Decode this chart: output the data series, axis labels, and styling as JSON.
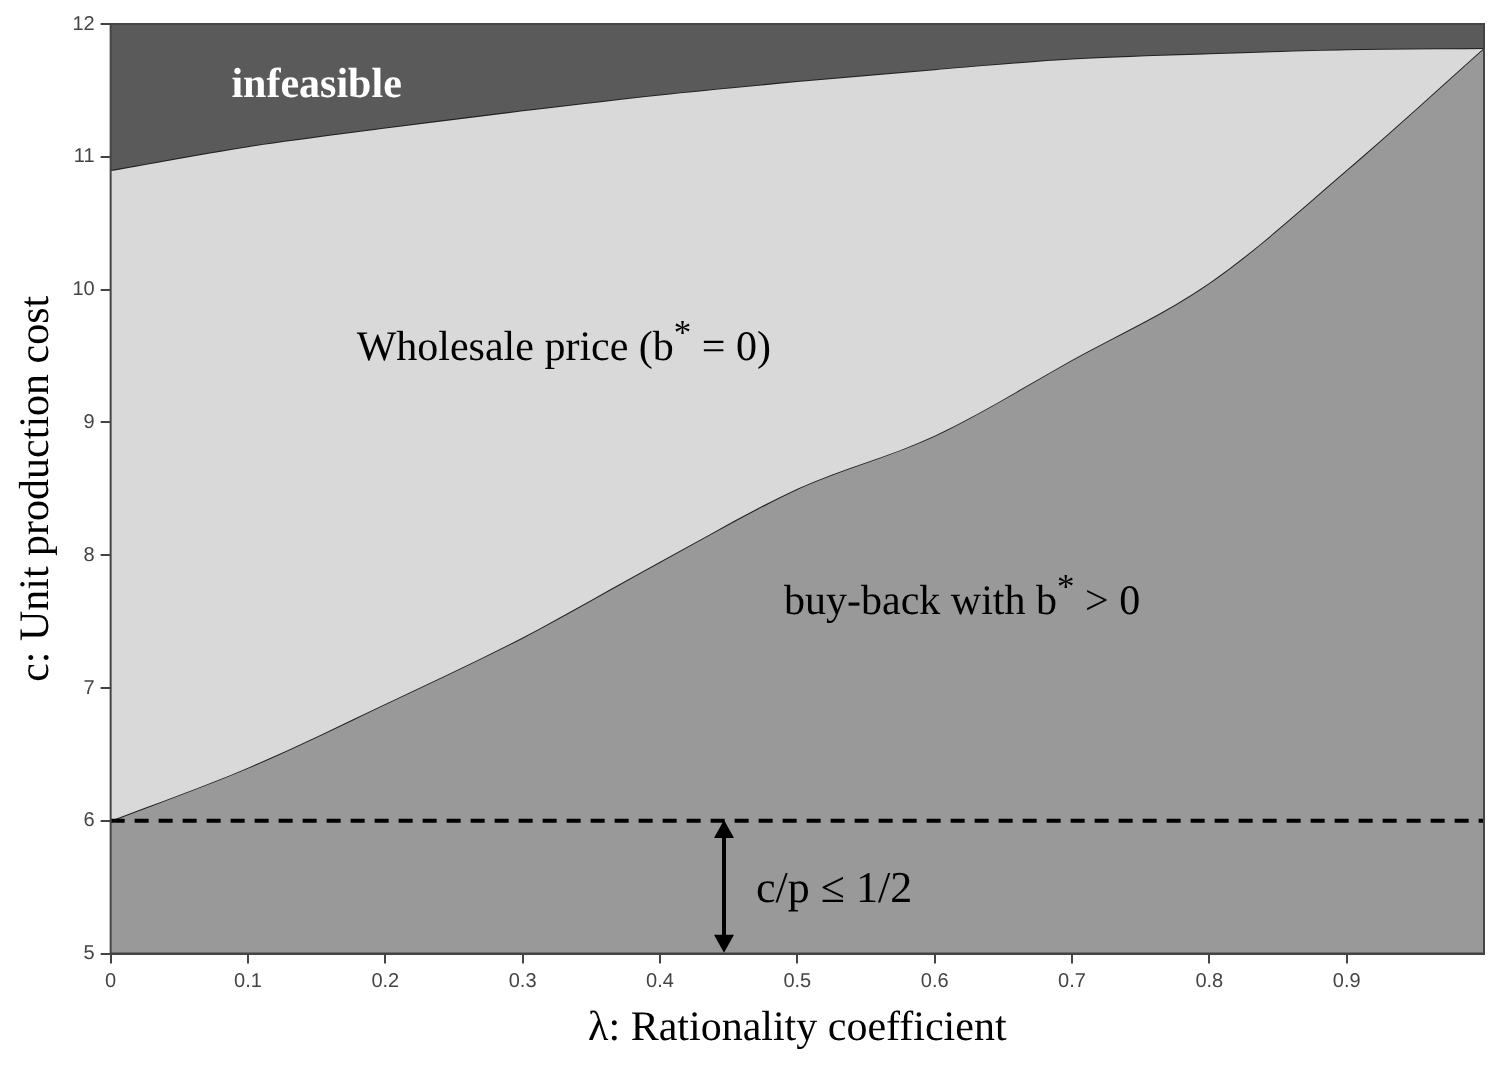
{
  "chart_data": {
    "type": "area",
    "xlabel": "λ: Rationality coefficient",
    "ylabel": "c: Unit production cost",
    "x": [
      0,
      0.1,
      0.2,
      0.3,
      0.4,
      0.5,
      0.6,
      0.7,
      0.8,
      0.9,
      1.0
    ],
    "series": [
      {
        "name": "buy-back with b$^{*}$ > 0",
        "color": "#999999",
        "values": [
          6.0,
          6.4,
          6.88,
          7.38,
          7.95,
          8.5,
          8.9,
          9.47,
          10.05,
          10.9,
          11.82
        ]
      },
      {
        "name": "Wholesale price (b$^{*}$ = 0)",
        "color": "#d9d9d9",
        "values": [
          10.9,
          11.08,
          11.22,
          11.35,
          11.47,
          11.57,
          11.66,
          11.74,
          11.78,
          11.81,
          11.82
        ]
      },
      {
        "name": "infeasible",
        "color": "#5a5a5a",
        "values": [
          12,
          12,
          12,
          12,
          12,
          12,
          12,
          12,
          12,
          12,
          12
        ]
      }
    ],
    "xlim": [
      0,
      1
    ],
    "xticks": [
      0,
      0.1,
      0.2,
      0.3,
      0.4,
      0.5,
      0.6,
      0.7,
      0.8,
      0.9
    ],
    "ylim": [
      5,
      12
    ],
    "yticks": [
      5,
      6,
      7,
      8,
      9,
      10,
      11,
      12
    ],
    "ref_lines": [
      {
        "axis": "y",
        "value": 6,
        "color": "#000000",
        "line_style": "dashed"
      }
    ],
    "annotations": [
      "c/p ≤ 1/2"
    ],
    "legend": false,
    "marker": "none"
  }
}
